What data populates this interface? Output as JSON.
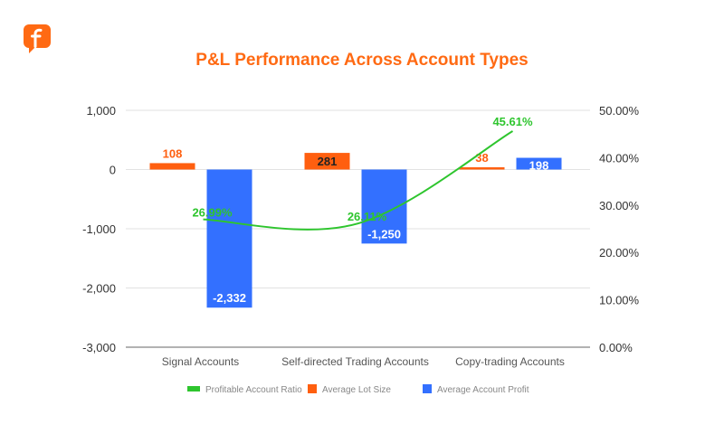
{
  "chart_data": {
    "type": "bar",
    "title": "P&L Performance Across Account Types",
    "categories": [
      "Signal Accounts",
      "Self-directed Trading Accounts",
      "Copy-trading Accounts"
    ],
    "series": [
      {
        "name": "Profitable Account Ratio",
        "type": "line",
        "axis": "right",
        "values": [
          26.99,
          26.11,
          45.61
        ],
        "labels": [
          "26.99%",
          "26.11%",
          "45.61%"
        ],
        "color": "#2ec52e"
      },
      {
        "name": "Average Lot Size",
        "type": "bar",
        "axis": "left",
        "values": [
          108,
          281,
          38
        ],
        "labels": [
          "108",
          "281",
          "38"
        ],
        "color": "#ff5f0f"
      },
      {
        "name": "Average Account Profit",
        "type": "bar",
        "axis": "left",
        "values": [
          -2332,
          -1250,
          198
        ],
        "labels": [
          "-2,332",
          "-1,250",
          "198"
        ],
        "color": "#3370ff"
      }
    ],
    "left_axis": {
      "ylim": [
        -3000,
        1000
      ],
      "ticks": [
        "1,000",
        "0",
        "-1,000",
        "-2,000",
        "-3,000"
      ],
      "tick_values": [
        1000,
        0,
        -1000,
        -2000,
        -3000
      ]
    },
    "right_axis": {
      "ylim": [
        0,
        50
      ],
      "ticks": [
        "50.00%",
        "40.00%",
        "30.00%",
        "20.00%",
        "10.00%",
        "0.00%"
      ],
      "tick_values": [
        50,
        40,
        30,
        20,
        10,
        0
      ]
    },
    "grid": true,
    "legend_position": "bottom"
  },
  "colors": {
    "title": "#ff6a13",
    "brand": "#ff6a13"
  },
  "logo_icon": "brand-f-logo"
}
